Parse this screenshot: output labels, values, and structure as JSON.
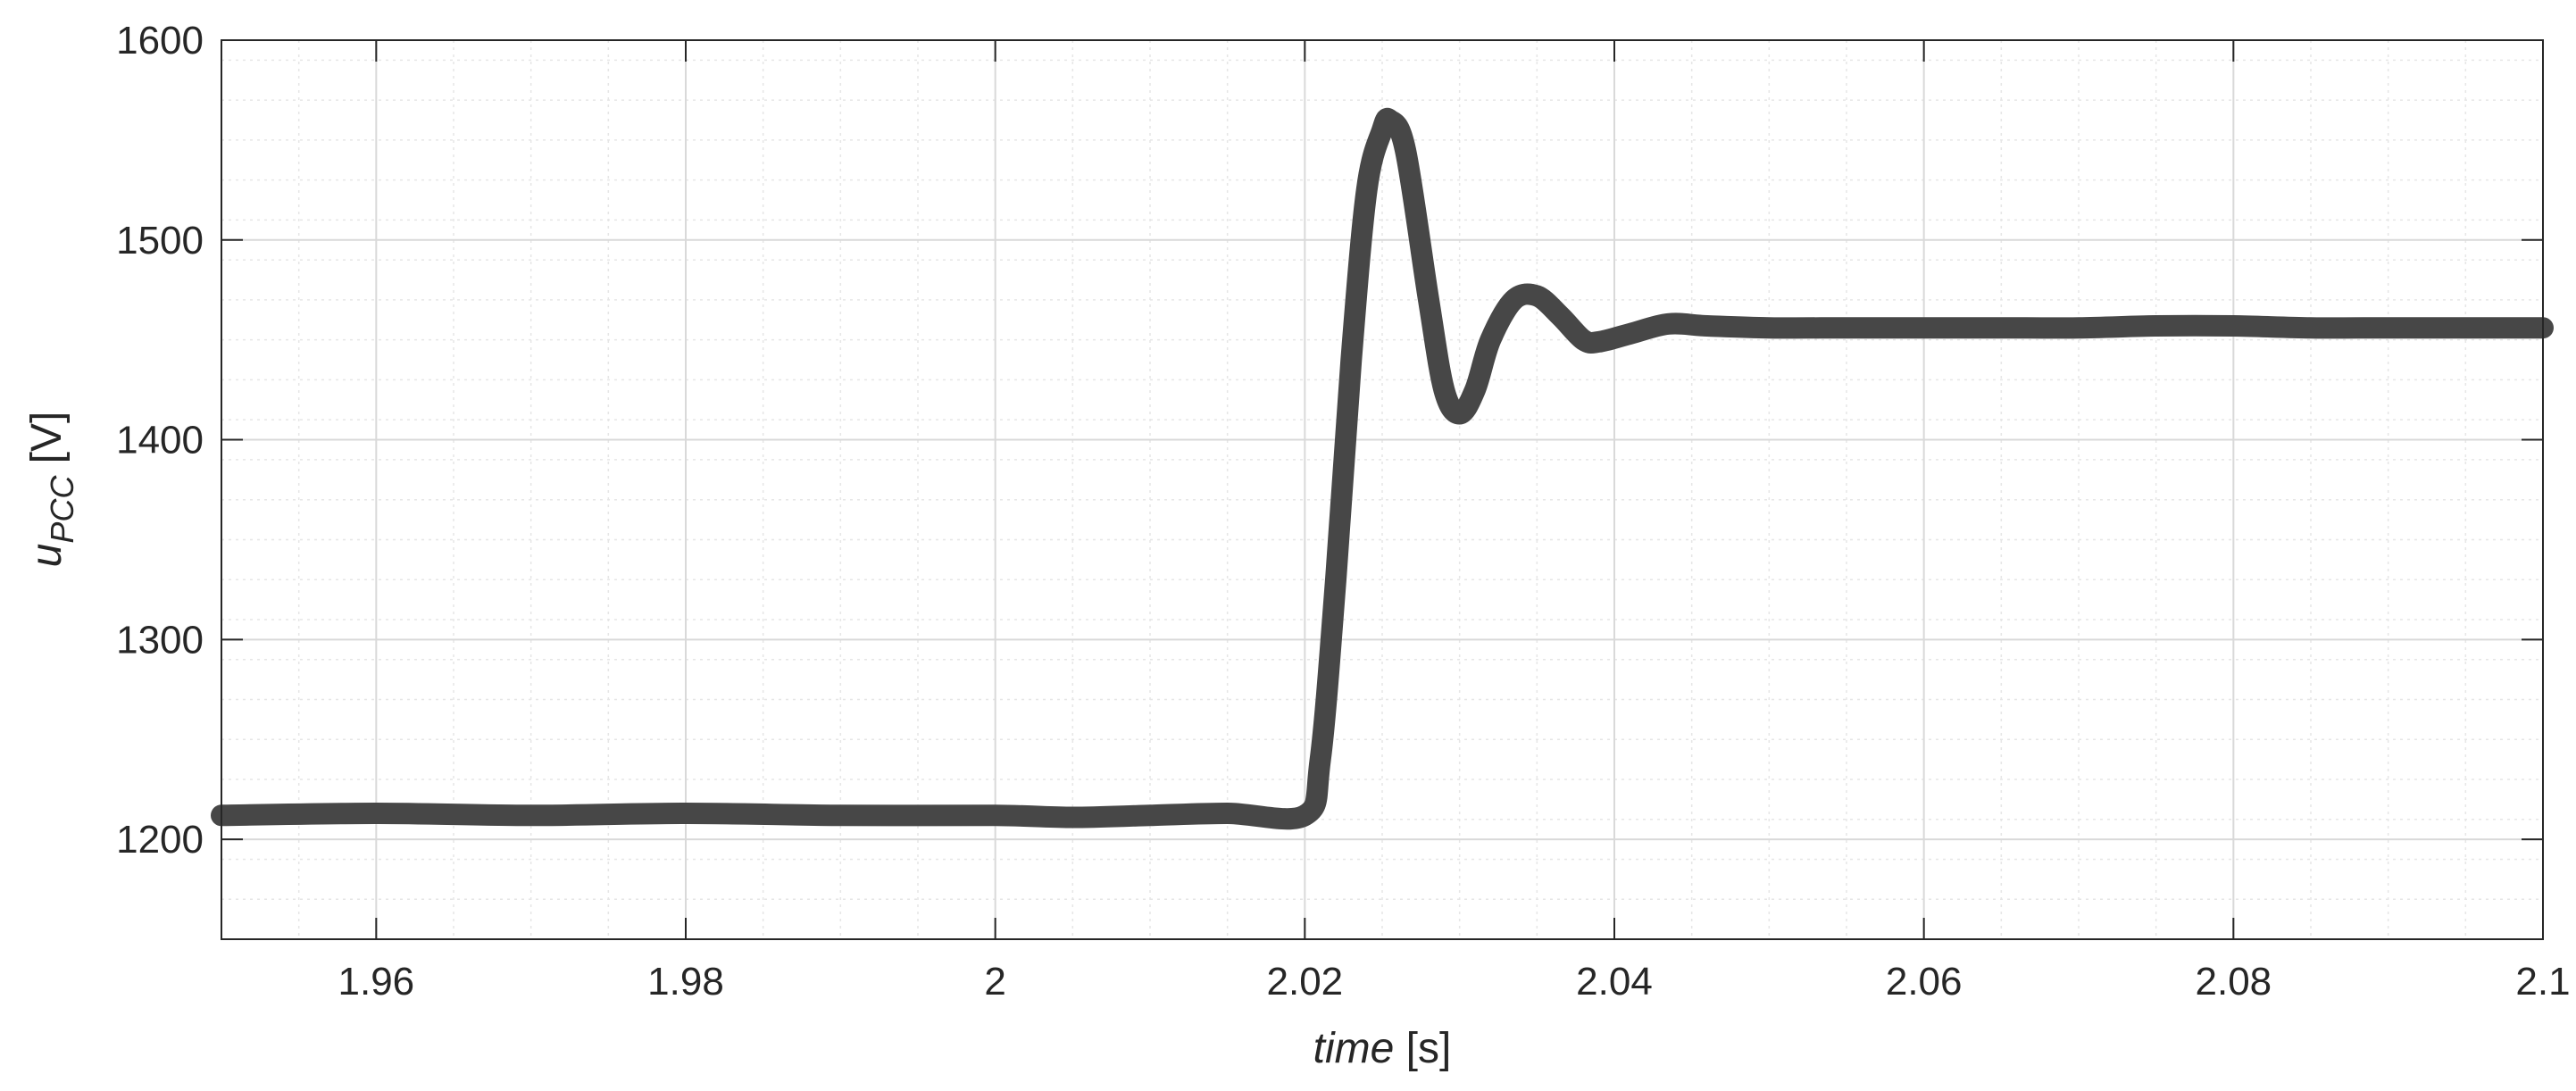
{
  "chart_data": {
    "type": "line",
    "xlabel": {
      "italic": "time",
      "rest": " [s]"
    },
    "ylabel": {
      "base": "u",
      "sub": "PCC",
      "rest": " [V]"
    },
    "xlim": [
      1.95,
      2.1
    ],
    "ylim": [
      1150,
      1600
    ],
    "x_ticks": [
      1.96,
      1.98,
      2,
      2.02,
      2.04,
      2.06,
      2.08,
      2.1
    ],
    "x_tick_labels": [
      "1.96",
      "1.98",
      "2",
      "2.02",
      "2.04",
      "2.06",
      "2.08",
      "2.1"
    ],
    "y_ticks": [
      1200,
      1300,
      1400,
      1500,
      1600
    ],
    "y_tick_labels": [
      "1200",
      "1300",
      "1400",
      "1500",
      "1600"
    ],
    "grid": true,
    "minor_grid": true,
    "line_color": "#474747",
    "series": [
      {
        "x": [
          1.95,
          1.96,
          1.97,
          1.98,
          1.99,
          2.0,
          2.005,
          2.01,
          2.015,
          2.02,
          2.021,
          2.022,
          2.023,
          2.024,
          2.025,
          2.0255,
          2.0265,
          2.028,
          2.029,
          2.03,
          2.031,
          2.032,
          2.0335,
          2.035,
          2.0365,
          2.038,
          2.039,
          2.041,
          2.0435,
          2.046,
          2.05,
          2.055,
          2.06,
          2.065,
          2.07,
          2.075,
          2.08,
          2.085,
          2.09,
          2.095,
          2.1
        ],
        "y": [
          1212,
          1213,
          1212,
          1213,
          1212,
          1212,
          1211,
          1212,
          1213,
          1212,
          1240,
          1330,
          1440,
          1525,
          1555,
          1560,
          1545,
          1470,
          1425,
          1413,
          1425,
          1450,
          1470,
          1472,
          1462,
          1450,
          1449,
          1453,
          1458,
          1457,
          1456,
          1456,
          1456,
          1456,
          1456,
          1457,
          1457,
          1456,
          1456,
          1456,
          1456
        ]
      }
    ]
  }
}
